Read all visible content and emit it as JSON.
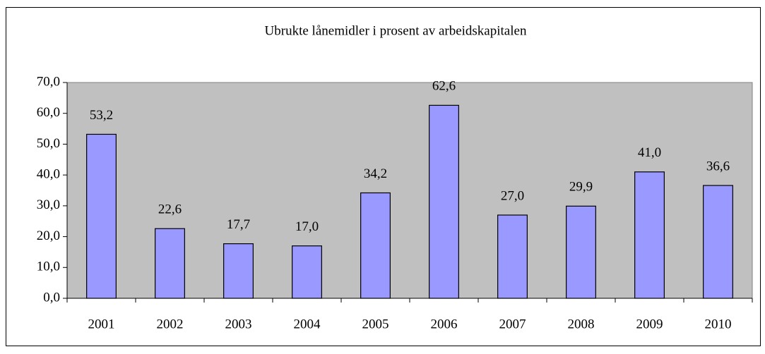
{
  "chart_data": {
    "type": "bar",
    "title": "Ubrukte lånemidler i prosent av arbeidskapitalen",
    "categories": [
      "2001",
      "2002",
      "2003",
      "2004",
      "2005",
      "2006",
      "2007",
      "2008",
      "2009",
      "2010"
    ],
    "values": [
      53.2,
      22.6,
      17.7,
      17.0,
      34.2,
      62.6,
      27.0,
      29.9,
      41.0,
      36.6
    ],
    "value_labels": [
      "53,2",
      "22,6",
      "17,7",
      "17,0",
      "34,2",
      "62,6",
      "27,0",
      "29,9",
      "41,0",
      "36,6"
    ],
    "color": "#9999ff",
    "plot_background": "#c0c0c0",
    "ylim": [
      0,
      70
    ],
    "yticks": [
      {
        "value": 0,
        "label": "0,0"
      },
      {
        "value": 10,
        "label": "10,0"
      },
      {
        "value": 20,
        "label": "20,0"
      },
      {
        "value": 30,
        "label": "30,0"
      },
      {
        "value": 40,
        "label": "40,0"
      },
      {
        "value": 50,
        "label": "50,0"
      },
      {
        "value": 60,
        "label": "60,0"
      },
      {
        "value": 70,
        "label": "70,0"
      }
    ],
    "grid": false
  }
}
